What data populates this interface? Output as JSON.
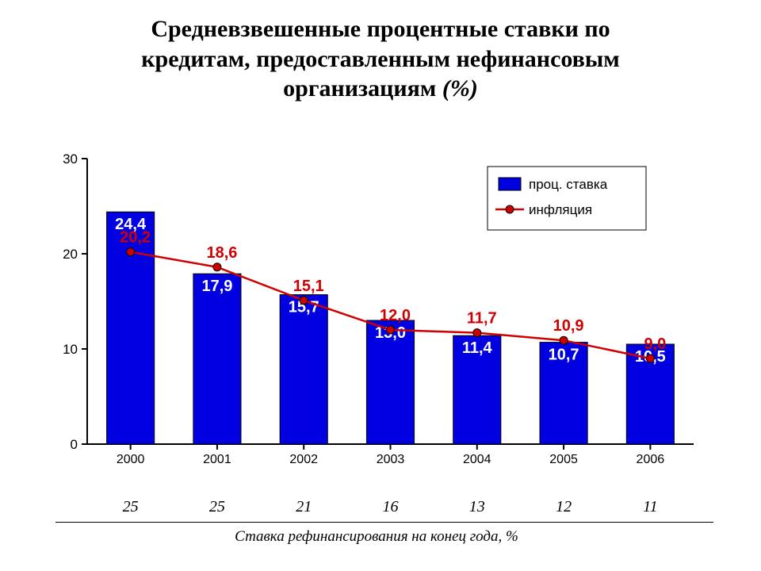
{
  "title_line1": "Средневзвешенные процентные ставки по",
  "title_line2": "кредитам, предоставленным нефинансовым",
  "title_line3_bold": "организациям ",
  "title_line3_italic": "(%)",
  "title_fontsize": 30,
  "chart": {
    "type": "bar+line",
    "background_color": "#ffffff",
    "categories": [
      "2000",
      "2001",
      "2002",
      "2003",
      "2004",
      "2005",
      "2006"
    ],
    "yaxis": {
      "min": 0,
      "max": 30,
      "tick_step": 10,
      "tick_labels": [
        "0",
        "10",
        "20",
        "30"
      ],
      "tick_fontsize": 17,
      "axis_color": "#000000"
    },
    "bars": {
      "values": [
        24.4,
        17.9,
        15.7,
        13.0,
        11.4,
        10.7,
        10.5
      ],
      "labels": [
        "24,4",
        "17,9",
        "15,7",
        "13,0",
        "11,4",
        "10,7",
        "10,5"
      ],
      "fill_color": "#0000e0",
      "border_color": "#000000",
      "label_color": "#ffffff",
      "label_fontsize": 20,
      "bar_width_ratio": 0.55
    },
    "line": {
      "values": [
        20.2,
        18.6,
        15.1,
        12.0,
        11.7,
        10.9,
        9.0
      ],
      "labels": [
        "20,2",
        "18,6",
        "15,1",
        "12,0",
        "11,7",
        "10,9",
        "9,0"
      ],
      "color": "#d00000",
      "marker_fill": "#d00000",
      "marker_border": "#000000",
      "marker_size": 5,
      "label_color": "#d00000",
      "label_fontsize": 20
    },
    "legend": {
      "items": [
        {
          "type": "bar",
          "label": "проц. ставка",
          "swatch_fill": "#0000e0",
          "swatch_border": "#000000"
        },
        {
          "type": "line",
          "label": "инфляция",
          "line_color": "#d00000",
          "marker_fill": "#d00000"
        }
      ],
      "box_border": "#000000",
      "font_size": 17
    },
    "category_fontsize": 16
  },
  "refinancing_row": {
    "values": [
      "25",
      "25",
      "21",
      "16",
      "13",
      "12",
      "11"
    ],
    "fontsize": 20
  },
  "bottom_caption": "Ставка рефинансирования на конец года, %"
}
